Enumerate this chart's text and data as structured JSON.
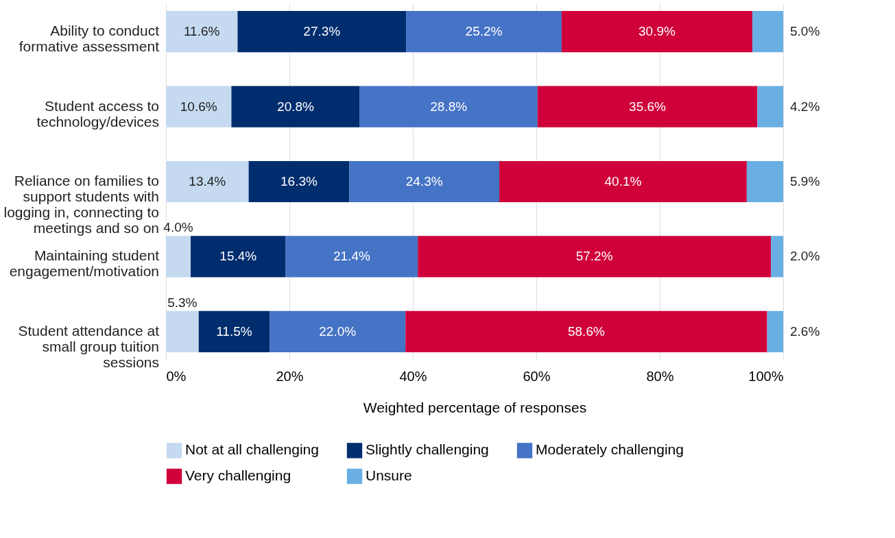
{
  "chart_data": {
    "type": "bar",
    "orientation": "horizontal",
    "stacked": true,
    "xlabel": "Weighted percentage of responses",
    "categories": [
      "Ability to conduct formative assessment",
      "Student access to technology/devices",
      "Reliance on families to support students with logging in, connecting to meetings and so on",
      "Maintaining student engagement/motivation",
      "Student attendance at small group tuition sessions"
    ],
    "series": [
      {
        "name": "Not at all challenging",
        "color": "#c5daf0",
        "values": [
          11.6,
          10.6,
          13.4,
          4.0,
          5.3
        ],
        "value_labels": [
          "11.6%",
          "10.6%",
          "13.4%",
          "4.0%",
          "5.3%"
        ]
      },
      {
        "name": "Slightly challenging",
        "color": "#002d6e",
        "values": [
          27.3,
          20.8,
          16.3,
          15.4,
          11.5
        ],
        "value_labels": [
          "27.3%",
          "20.8%",
          "16.3%",
          "15.4%",
          "11.5%"
        ]
      },
      {
        "name": "Moderately challenging",
        "color": "#4573c5",
        "values": [
          25.2,
          28.8,
          24.3,
          21.4,
          22.0
        ],
        "value_labels": [
          "25.2%",
          "28.8%",
          "24.3%",
          "21.4%",
          "22.0%"
        ]
      },
      {
        "name": "Very challenging",
        "color": "#d0003a",
        "values": [
          30.9,
          35.6,
          40.1,
          57.2,
          58.6
        ],
        "value_labels": [
          "30.9%",
          "35.6%",
          "40.1%",
          "57.2%",
          "58.6%"
        ]
      },
      {
        "name": "Unsure",
        "color": "#6aafe3",
        "values": [
          5.0,
          4.2,
          5.9,
          2.0,
          2.6
        ],
        "value_labels": [
          "5.0%",
          "4.2%",
          "5.9%",
          "2.0%",
          "2.6%"
        ]
      }
    ],
    "xlim": [
      0,
      100
    ],
    "xticks": [
      {
        "value": 0,
        "label": "0%"
      },
      {
        "value": 20,
        "label": "20%"
      },
      {
        "value": 40,
        "label": "40%"
      },
      {
        "value": 60,
        "label": "60%"
      },
      {
        "value": 80,
        "label": "80%"
      },
      {
        "value": 100,
        "label": "100%"
      }
    ],
    "grid": "x",
    "legend": "bottom"
  }
}
